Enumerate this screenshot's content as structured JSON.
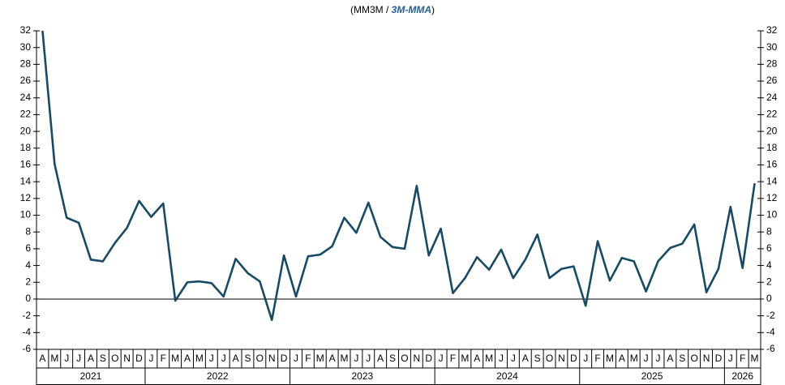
{
  "chart_data": {
    "type": "line",
    "title_parts": [
      "(MM3M / ",
      "3M-MMA",
      ")"
    ],
    "categories": [
      "A",
      "M",
      "J",
      "J",
      "A",
      "S",
      "O",
      "N",
      "D",
      "J",
      "F",
      "M",
      "A",
      "M",
      "J",
      "J",
      "A",
      "S",
      "O",
      "N",
      "D",
      "J",
      "F",
      "M",
      "A",
      "M",
      "J",
      "J",
      "A",
      "S",
      "O",
      "N",
      "D",
      "J",
      "F",
      "M",
      "A",
      "M",
      "J",
      "J",
      "A",
      "S",
      "O",
      "N",
      "D",
      "J",
      "F",
      "M",
      "A",
      "M",
      "J",
      "J",
      "A",
      "S",
      "O",
      "N",
      "D",
      "J",
      "F",
      "M"
    ],
    "years": [
      "2021",
      "2022",
      "2023",
      "2024",
      "2025",
      "2026"
    ],
    "values": [
      32,
      16.1,
      9.7,
      9.1,
      4.7,
      4.5,
      6.7,
      8.5,
      11.7,
      9.8,
      11.4,
      -0.2,
      2.0,
      2.1,
      1.9,
      0.3,
      4.8,
      3.1,
      2.1,
      -2.5,
      5.2,
      0.3,
      5.1,
      5.3,
      6.3,
      9.7,
      7.9,
      11.5,
      7.4,
      6.2,
      6.0,
      13.5,
      5.2,
      8.4,
      0.7,
      2.5,
      5.0,
      3.5,
      5.9,
      2.5,
      4.7,
      7.7,
      2.5,
      3.6,
      3.9,
      -0.8,
      6.9,
      2.2,
      4.9,
      4.5,
      0.9,
      4.5,
      6.1,
      6.6,
      8.9,
      0.8,
      3.6,
      11.0,
      3.7,
      13.8
    ],
    "color": "#174a67",
    "title_highlight_color": "#1f5fa0",
    "ylim": [
      -6,
      32
    ],
    "yticks": [
      -6,
      -4,
      -2,
      0,
      2,
      4,
      6,
      8,
      10,
      12,
      14,
      16,
      18,
      20,
      22,
      24,
      26,
      28,
      30,
      32
    ],
    "y2lim": [
      -6,
      32
    ],
    "y2ticks": [
      -6,
      -4,
      -2,
      0,
      2,
      4,
      6,
      8,
      10,
      12,
      14,
      16,
      18,
      20,
      22,
      24,
      26,
      28,
      30,
      32
    ],
    "grid": false
  }
}
